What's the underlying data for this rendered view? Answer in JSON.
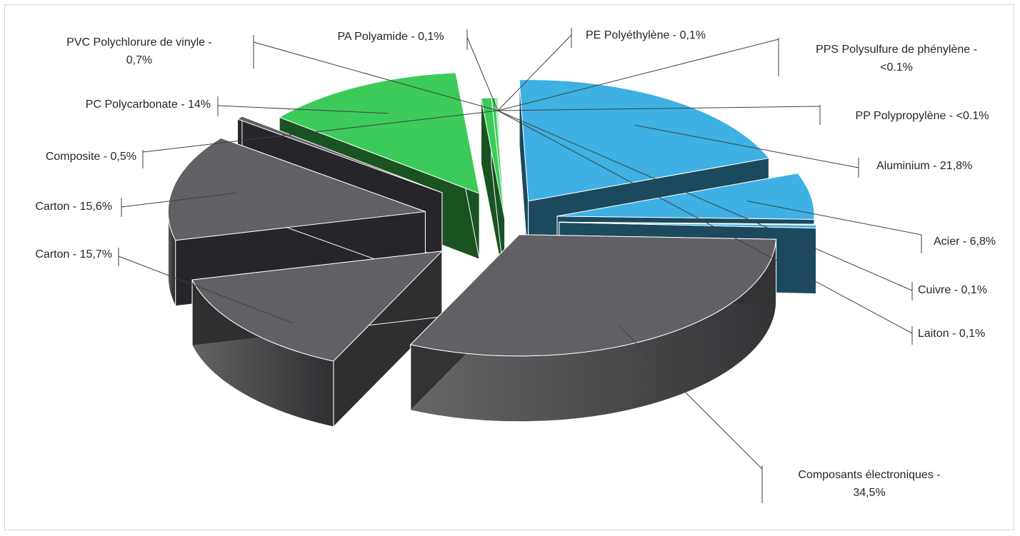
{
  "chart_data": {
    "type": "pie",
    "style": "3d-exploded",
    "legend": "none",
    "slices": [
      {
        "label": "Aluminium - 21,8%",
        "value": 21.8,
        "top_color": "#3eb0e3",
        "side_color": "#1b4a5e"
      },
      {
        "label": "Acier - 6,8%",
        "value": 6.8,
        "top_color": "#3eb0e3",
        "side_color": "#1b4a5e"
      },
      {
        "label": "Cuivre - 0,1%",
        "value": 0.1,
        "top_color": "#3eb0e3",
        "side_color": "#1b4a5e"
      },
      {
        "label": "Laiton - 0,1%",
        "value": 0.1,
        "top_color": "#3eb0e3",
        "side_color": "#1b4a5e"
      },
      {
        "label": "Composants électroniques - 34,5%",
        "value": 34.5,
        "top_color": "#606065",
        "side_color": "#333336"
      },
      {
        "label": "Carton - 15,7%",
        "value": 15.7,
        "top_color": "#606065",
        "side_color": "#2f2f32"
      },
      {
        "label": "Carton - 15,6%",
        "value": 15.6,
        "top_color": "#606065",
        "side_color": "#26262a"
      },
      {
        "label": "Composite - 0,5%",
        "value": 0.5,
        "top_color": "#606065",
        "side_color": "#26262a"
      },
      {
        "label": "PC Polycarbonate - 14%",
        "value": 14,
        "top_color": "#3ccb5a",
        "side_color": "#1a5322"
      },
      {
        "label": "PVC Polychlorure de vinyle - 0,7%",
        "value": 0.7,
        "top_color": "#3ccb5a",
        "side_color": "#1a5322"
      },
      {
        "label": "PA Polyamide - 0,1%",
        "value": 0.1,
        "top_color": "#3ccb5a",
        "side_color": "#1a5322"
      },
      {
        "label": "PE Polyéthylène - 0,1%",
        "value": 0.1,
        "top_color": "#3ccb5a",
        "side_color": "#1a5322"
      },
      {
        "label": "PPS Polysulfure de phénylène - <0.1%",
        "value": 0.05,
        "top_color": "#3ccb5a",
        "side_color": "#1a5322"
      },
      {
        "label": "PP Polypropylène - <0.1%",
        "value": 0.05,
        "top_color": "#3ccb5a",
        "side_color": "#1a5322"
      }
    ]
  }
}
